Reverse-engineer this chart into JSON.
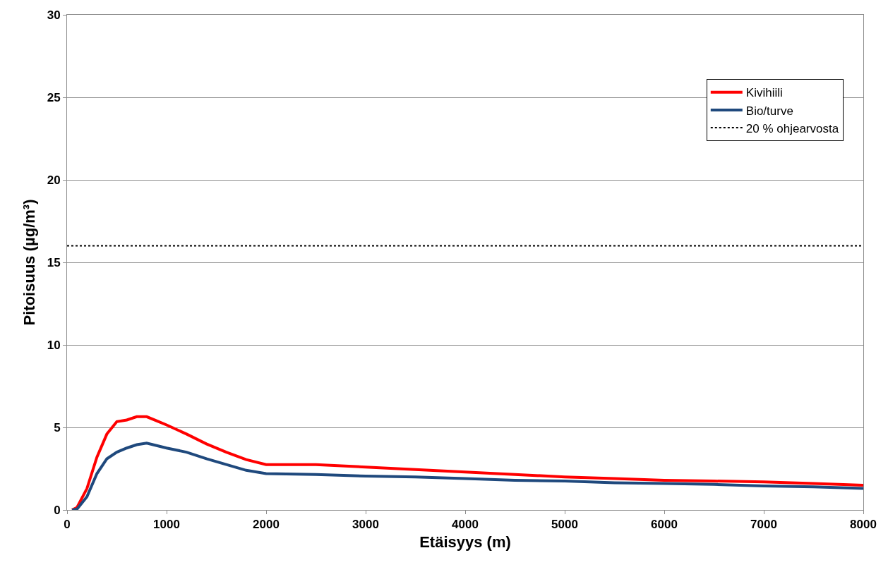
{
  "chart_data": {
    "type": "line",
    "xlabel": "Etäisyys (m)",
    "ylabel": "Pitoisuus (µg/m³)",
    "x": [
      50,
      100,
      200,
      300,
      400,
      500,
      600,
      700,
      800,
      900,
      1000,
      1200,
      1400,
      1600,
      1800,
      2000,
      2500,
      3000,
      3500,
      4000,
      4500,
      5000,
      5500,
      6000,
      6500,
      7000,
      7500,
      8000
    ],
    "series": [
      {
        "name": "Kivihiili",
        "color": "#ff0000",
        "values": [
          0,
          0.15,
          1.3,
          3.2,
          4.6,
          5.35,
          5.45,
          5.65,
          5.65,
          5.4,
          5.15,
          4.6,
          4.0,
          3.5,
          3.05,
          2.75,
          2.75,
          2.6,
          2.45,
          2.3,
          2.15,
          2.0,
          1.9,
          1.8,
          1.75,
          1.7,
          1.6,
          1.5
        ]
      },
      {
        "name": "Bio/turve",
        "color": "#1f497d",
        "values": [
          0,
          0.05,
          0.8,
          2.2,
          3.1,
          3.5,
          3.75,
          3.95,
          4.05,
          3.9,
          3.75,
          3.5,
          3.1,
          2.75,
          2.4,
          2.2,
          2.15,
          2.05,
          2.0,
          1.9,
          1.8,
          1.75,
          1.65,
          1.6,
          1.55,
          1.45,
          1.4,
          1.3
        ]
      }
    ],
    "ref_lines": [
      {
        "axis": "y",
        "value": 16,
        "label": "20 % ohjearvosta",
        "color": "#000000",
        "line_style": "dotted"
      }
    ],
    "xlim": [
      0,
      8000
    ],
    "xticks": [
      0,
      1000,
      2000,
      3000,
      4000,
      5000,
      6000,
      7000,
      8000
    ],
    "ylim": [
      0,
      30
    ],
    "yticks": [
      0,
      5,
      10,
      15,
      20,
      25,
      30
    ],
    "grid": "y",
    "legend": "top right",
    "marker": "none",
    "line_style": "solid"
  }
}
